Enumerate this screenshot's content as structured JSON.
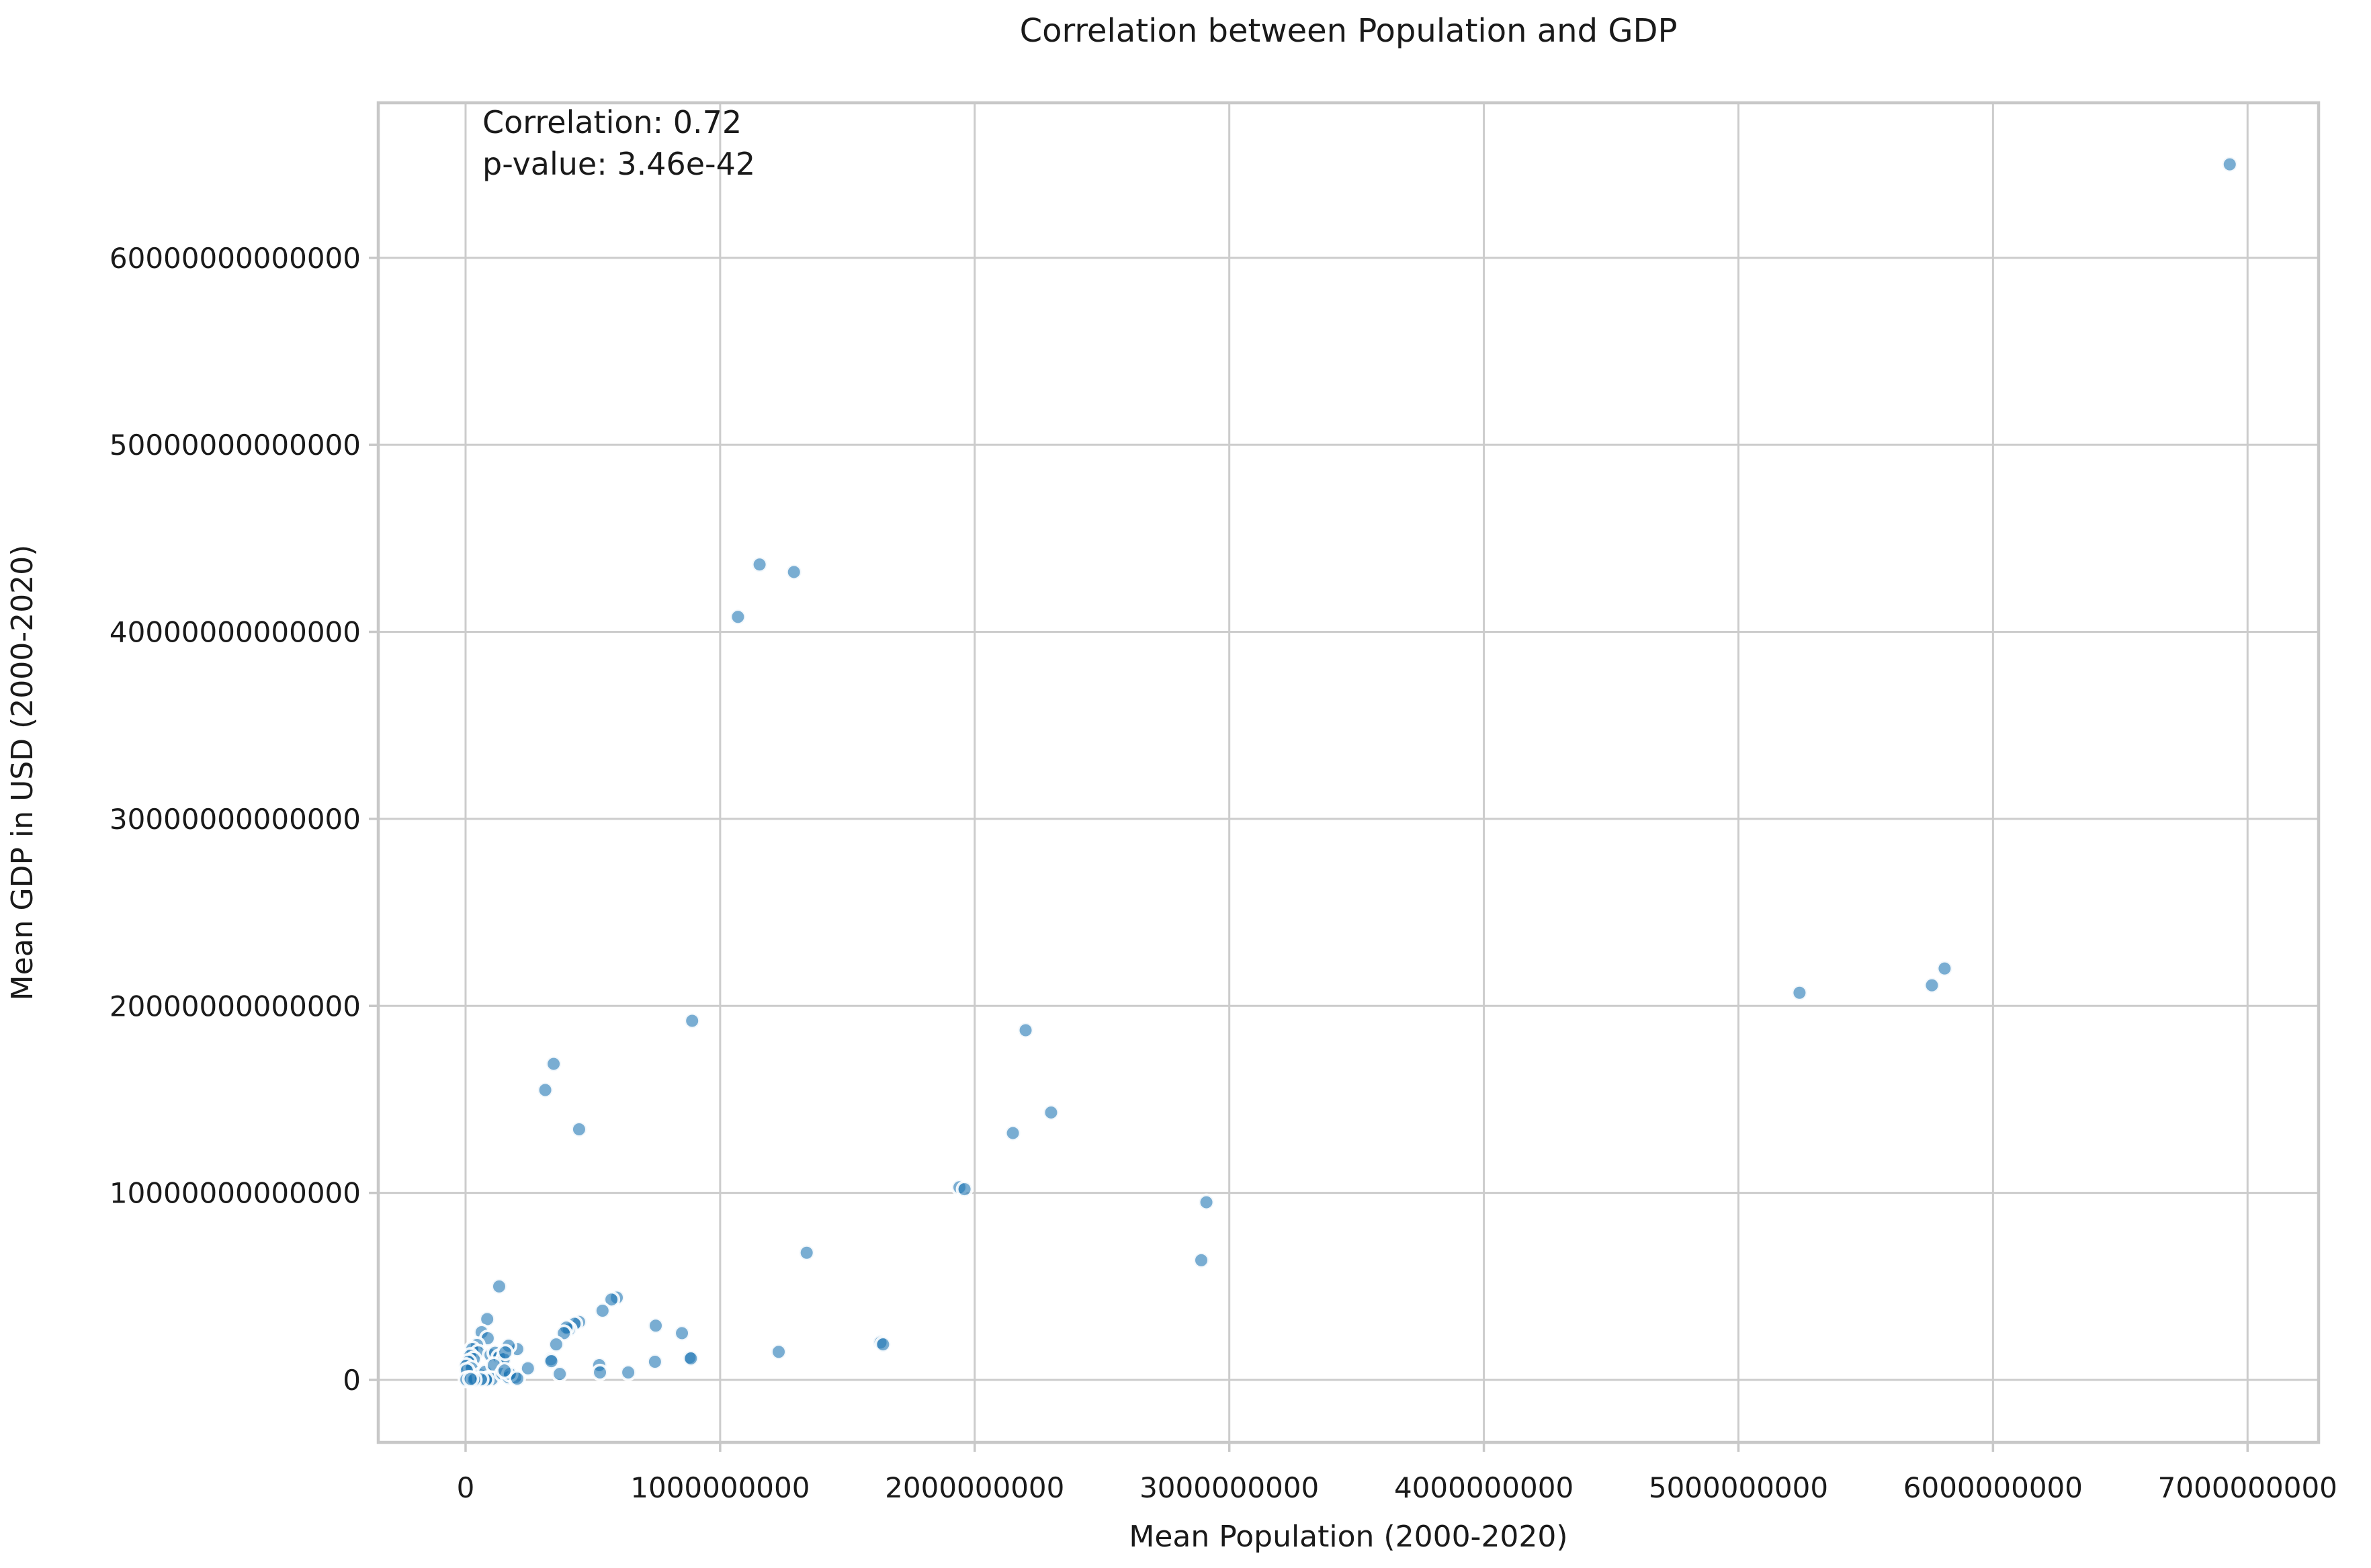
{
  "figure": {
    "title": "Correlation between Population and GDP",
    "xlabel": "Mean Population (2000-2020)",
    "ylabel": "Mean GDP in USD (2000-2020)",
    "annotation": {
      "line1": "Correlation: 0.72",
      "line2": "p-value: 3.46e-42"
    }
  },
  "chart_data": {
    "type": "scatter",
    "title": "Correlation between Population and GDP",
    "xlabel": "Mean Population (2000-2020)",
    "ylabel": "Mean GDP in USD (2000-2020)",
    "annotations": [
      "Correlation: 0.72",
      "p-value: 3.46e-42"
    ],
    "correlation": 0.72,
    "p_value": "3.46e-42",
    "grid": true,
    "legend": "none",
    "xlim": [
      -343000000,
      7279000000
    ],
    "ylim": [
      -3340000000000,
      68290000000000
    ],
    "x_ticks": [
      0,
      1000000000,
      2000000000,
      3000000000,
      4000000000,
      5000000000,
      6000000000,
      7000000000
    ],
    "y_ticks": [
      0,
      10000000000000,
      20000000000000,
      30000000000000,
      40000000000000,
      50000000000000,
      60000000000000
    ],
    "marker": {
      "fill": "#1f77b4",
      "fill_opacity": 0.6,
      "edge_color": "#ffffff",
      "edge_width": 4,
      "radius_px": 11
    },
    "colors": {
      "grid": "#cccccc",
      "spine": "#c8c8c8",
      "text": "#1a1a1a",
      "background": "#ffffff"
    },
    "points_units": "x = mean population (persons), y = mean GDP (USD), values estimated from plot",
    "points": [
      [
        6930000000,
        65000000000000
      ],
      [
        1155000000,
        43600000000000
      ],
      [
        1290000000,
        43200000000000
      ],
      [
        1070000000,
        40800000000000
      ],
      [
        5240000000,
        20700000000000
      ],
      [
        5760000000,
        21100000000000
      ],
      [
        5810000000,
        22000000000000
      ],
      [
        890000000,
        19200000000000
      ],
      [
        2200000000,
        18700000000000
      ],
      [
        2300000000,
        14300000000000
      ],
      [
        2150000000,
        13200000000000
      ],
      [
        1940000000,
        10300000000000
      ],
      [
        1960000000,
        10200000000000
      ],
      [
        2910000000,
        9500000000000
      ],
      [
        2890000000,
        6400000000000
      ],
      [
        1340000000,
        6800000000000
      ],
      [
        446000000,
        13400000000000
      ],
      [
        346000000,
        16900000000000
      ],
      [
        313000000,
        15500000000000
      ],
      [
        1230000000,
        1500000000000
      ],
      [
        1630000000,
        2000000000000
      ],
      [
        1640000000,
        1900000000000
      ],
      [
        594000000,
        4400000000000
      ],
      [
        573000000,
        4300000000000
      ],
      [
        538000000,
        3700000000000
      ],
      [
        446000000,
        3100000000000
      ],
      [
        428000000,
        3000000000000
      ],
      [
        406000000,
        2700000000000
      ],
      [
        396000000,
        2800000000000
      ],
      [
        386000000,
        2500000000000
      ],
      [
        356000000,
        1900000000000
      ],
      [
        335000000,
        1100000000000
      ],
      [
        337000000,
        1000000000000
      ],
      [
        370000000,
        320000000000
      ],
      [
        525000000,
        790000000000
      ],
      [
        528000000,
        400000000000
      ],
      [
        639000000,
        400000000000
      ],
      [
        744000000,
        970000000000
      ],
      [
        747000000,
        2900000000000
      ],
      [
        850000000,
        2500000000000
      ],
      [
        880000000,
        1200000000000
      ],
      [
        885000000,
        1150000000000
      ],
      [
        132000000,
        5000000000000
      ],
      [
        85000000,
        3250000000000
      ],
      [
        63000000,
        2550000000000
      ],
      [
        87000000,
        2230000000000
      ],
      [
        45000000,
        1870000000000
      ],
      [
        26000000,
        1650000000000
      ],
      [
        50000000,
        1470000000000
      ],
      [
        18000000,
        1290000000000
      ],
      [
        32000000,
        1110000000000
      ],
      [
        11000000,
        970000000000
      ],
      [
        2000000,
        750000000000
      ],
      [
        24000000,
        610000000000
      ],
      [
        5000000,
        500000000000
      ],
      [
        13000000,
        70000000000
      ],
      [
        3000000,
        20000000000
      ],
      [
        37000000,
        50000000000
      ],
      [
        58000000,
        250000000000
      ],
      [
        77000000,
        430000000000
      ],
      [
        98000000,
        1330000000000
      ],
      [
        116000000,
        1450000000000
      ],
      [
        132000000,
        1220000000000
      ],
      [
        150000000,
        1110000000000
      ],
      [
        111000000,
        790000000000
      ],
      [
        90000000,
        70000000000
      ],
      [
        103000000,
        40000000000
      ],
      [
        80000000,
        10000000000
      ],
      [
        145000000,
        320000000000
      ],
      [
        169000000,
        140000000000
      ],
      [
        203000000,
        1650000000000
      ],
      [
        169000000,
        1830000000000
      ],
      [
        156000000,
        1470000000000
      ],
      [
        245000000,
        620000000000
      ],
      [
        195000000,
        140000000000
      ],
      [
        174000000,
        320000000000
      ],
      [
        153000000,
        500000000000
      ],
      [
        203000000,
        70000000000
      ],
      [
        60000000,
        30000000000
      ],
      [
        33000000,
        10000000000
      ],
      [
        20000000,
        50000000000
      ]
    ]
  }
}
